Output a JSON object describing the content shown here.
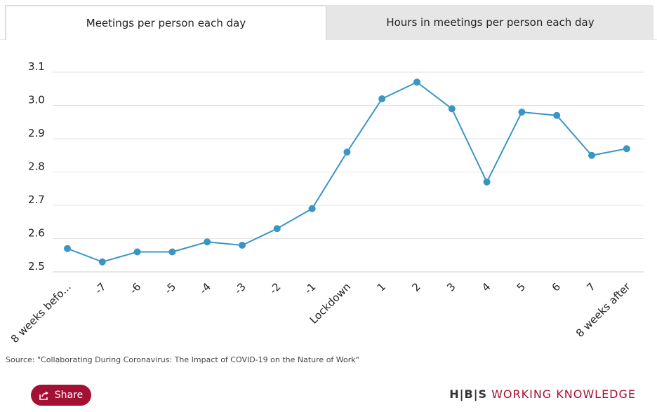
{
  "tabs": [
    {
      "label": "Meetings per person each day",
      "active": true
    },
    {
      "label": "Hours in meetings per person each day",
      "active": false
    }
  ],
  "chart_data": {
    "type": "line",
    "categories": [
      "8 weeks befo...",
      "-7",
      "-6",
      "-5",
      "-4",
      "-3",
      "-2",
      "-1",
      "Lockdown",
      "1",
      "2",
      "3",
      "4",
      "5",
      "6",
      "7",
      "8 weeks after"
    ],
    "series": [
      {
        "values": [
          2.57,
          2.53,
          2.56,
          2.56,
          2.59,
          2.58,
          2.63,
          2.69,
          2.86,
          3.02,
          3.07,
          2.99,
          2.77,
          2.98,
          2.97,
          2.85,
          2.87
        ]
      }
    ],
    "yticks": [
      "2.5",
      "2.6",
      "2.7",
      "2.8",
      "2.9",
      "3.0",
      "3.1"
    ],
    "ylim": [
      2.5,
      3.1
    ],
    "grid": true,
    "line_color": "#3a95c4"
  },
  "source": "Source: \"Collaborating During Coronavirus: The Impact of COVID-19 on the Nature of Work\"",
  "share_label": "Share",
  "branding": {
    "hbs": "H|B|S",
    "wk": "WORKING KNOWLEDGE",
    "accent": "#a41033"
  }
}
